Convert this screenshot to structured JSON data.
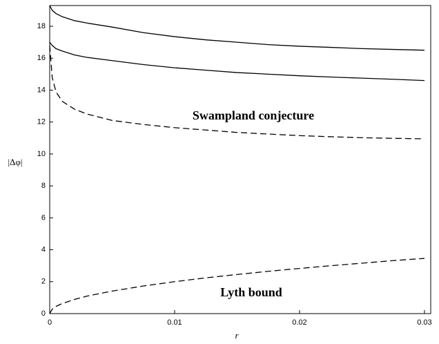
{
  "chart_data": {
    "type": "line",
    "x_label": "r",
    "y_label": "|Δφ|",
    "annotations": [
      "Swampland conjecture",
      "Lyth bound"
    ],
    "x": [
      0,
      0.0002,
      0.0005,
      0.001,
      0.002,
      0.003,
      0.005,
      0.0075,
      0.01,
      0.0125,
      0.015,
      0.0175,
      0.02,
      0.0225,
      0.025,
      0.0275,
      0.03
    ],
    "series": [
      {
        "color": "#000000",
        "dash": "solid",
        "values": [
          19.3,
          19.0,
          18.8,
          18.6,
          18.35,
          18.2,
          17.95,
          17.6,
          17.35,
          17.15,
          17.0,
          16.85,
          16.75,
          16.68,
          16.6,
          16.55,
          16.5
        ]
      },
      {
        "color": "#000000",
        "dash": "solid",
        "values": [
          17.0,
          16.8,
          16.6,
          16.45,
          16.2,
          16.05,
          15.85,
          15.6,
          15.4,
          15.25,
          15.1,
          15.0,
          14.9,
          14.82,
          14.75,
          14.68,
          14.6
        ]
      },
      {
        "color": "#000000",
        "dash": "dashed",
        "values": [
          16.8,
          14.8,
          13.9,
          13.3,
          12.8,
          12.5,
          12.1,
          11.85,
          11.65,
          11.5,
          11.35,
          11.25,
          11.15,
          11.08,
          11.02,
          10.98,
          10.95
        ]
      },
      {
        "color": "#000000",
        "dash": "dashed",
        "values": [
          0,
          0.28,
          0.45,
          0.63,
          0.89,
          1.1,
          1.41,
          1.73,
          2.0,
          2.24,
          2.45,
          2.65,
          2.83,
          3.0,
          3.16,
          3.32,
          3.46
        ]
      }
    ],
    "xlim": [
      0,
      0.0305
    ],
    "ylim": [
      0,
      19.3
    ],
    "xticks": [
      0,
      0.01,
      0.02,
      0.03
    ],
    "yticks": [
      0,
      2,
      4,
      6,
      8,
      10,
      12,
      14,
      16,
      18
    ],
    "grid": false
  }
}
